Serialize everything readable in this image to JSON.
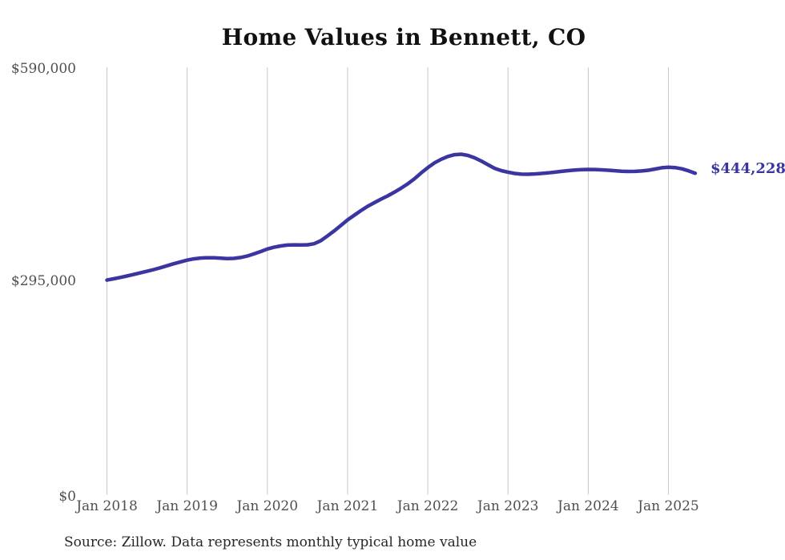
{
  "title": "Home Values in Bennett, CO",
  "y_axis": {
    "labels": [
      "$590,000",
      "$295,000",
      "$0"
    ],
    "values": [
      590000,
      295000,
      0
    ]
  },
  "x_axis": {
    "labels": [
      "Jan 2018",
      "Jan 2019",
      "Jan 2020",
      "Jan 2021",
      "Jan 2022",
      "Jan 2023",
      "Jan 2024",
      "Jan 2025"
    ]
  },
  "end_label": "$444,228",
  "source": "Source: Zillow. Data represents monthly typical home value",
  "colors": {
    "line": "#3A35A0",
    "value_label": "#3A35A0",
    "grid": "#C9C9C9",
    "axis_text": "#4F4F4F",
    "title_text": "#111111",
    "source_text": "#262626",
    "background": "#FFFFFF"
  },
  "chart_data": {
    "type": "line",
    "title": "Home Values in Bennett, CO",
    "series_name": "Monthly typical home value",
    "xlabel": "",
    "ylabel": "",
    "ylim": [
      0,
      590000
    ],
    "yticks": [
      0,
      295000,
      590000
    ],
    "ytick_labels": [
      "$0",
      "$295,000",
      "$590,000"
    ],
    "xtick_labels": [
      "Jan 2018",
      "Jan 2019",
      "Jan 2020",
      "Jan 2021",
      "Jan 2022",
      "Jan 2023",
      "Jan 2024",
      "Jan 2025"
    ],
    "grid": "vertical",
    "legend": false,
    "end_annotation": "$444,228",
    "latest_value": 444228,
    "x": [
      "2018-01",
      "2018-02",
      "2018-03",
      "2018-04",
      "2018-05",
      "2018-06",
      "2018-07",
      "2018-08",
      "2018-09",
      "2018-10",
      "2018-11",
      "2018-12",
      "2019-01",
      "2019-02",
      "2019-03",
      "2019-04",
      "2019-05",
      "2019-06",
      "2019-07",
      "2019-08",
      "2019-09",
      "2019-10",
      "2019-11",
      "2019-12",
      "2020-01",
      "2020-02",
      "2020-03",
      "2020-04",
      "2020-05",
      "2020-06",
      "2020-07",
      "2020-08",
      "2020-09",
      "2020-10",
      "2020-11",
      "2020-12",
      "2021-01",
      "2021-02",
      "2021-03",
      "2021-04",
      "2021-05",
      "2021-06",
      "2021-07",
      "2021-08",
      "2021-09",
      "2021-10",
      "2021-11",
      "2021-12",
      "2022-01",
      "2022-02",
      "2022-03",
      "2022-04",
      "2022-05",
      "2022-06",
      "2022-07",
      "2022-08",
      "2022-09",
      "2022-10",
      "2022-11",
      "2022-12",
      "2023-01",
      "2023-02",
      "2023-03",
      "2023-04",
      "2023-05",
      "2023-06",
      "2023-07",
      "2023-08",
      "2023-09",
      "2023-10",
      "2023-11",
      "2023-12",
      "2024-01",
      "2024-02",
      "2024-03",
      "2024-04",
      "2024-05",
      "2024-06",
      "2024-07",
      "2024-08",
      "2024-09",
      "2024-10",
      "2024-11",
      "2024-12",
      "2025-01",
      "2025-02",
      "2025-03",
      "2025-04",
      "2025-05"
    ],
    "values": [
      296600,
      298300,
      300200,
      302200,
      304300,
      306500,
      308700,
      311000,
      313600,
      316400,
      319100,
      321700,
      324100,
      325900,
      327000,
      327400,
      327300,
      326800,
      326300,
      326600,
      327800,
      329800,
      332700,
      336000,
      339500,
      341900,
      343700,
      344900,
      345200,
      345100,
      345200,
      346800,
      351000,
      357600,
      364500,
      372000,
      379700,
      386200,
      392500,
      398500,
      403500,
      408300,
      412900,
      418000,
      423500,
      429500,
      436500,
      444500,
      452000,
      458500,
      463500,
      467300,
      469800,
      470400,
      468800,
      465500,
      461000,
      456000,
      451000,
      447800,
      445600,
      443900,
      442900,
      442800,
      443200,
      443900,
      444700,
      445600,
      446800,
      447800,
      448600,
      449100,
      449400,
      449300,
      448900,
      448300,
      447600,
      447000,
      446700,
      446800,
      447300,
      448300,
      450000,
      451700,
      452500,
      452000,
      450300,
      447500,
      444228
    ]
  }
}
